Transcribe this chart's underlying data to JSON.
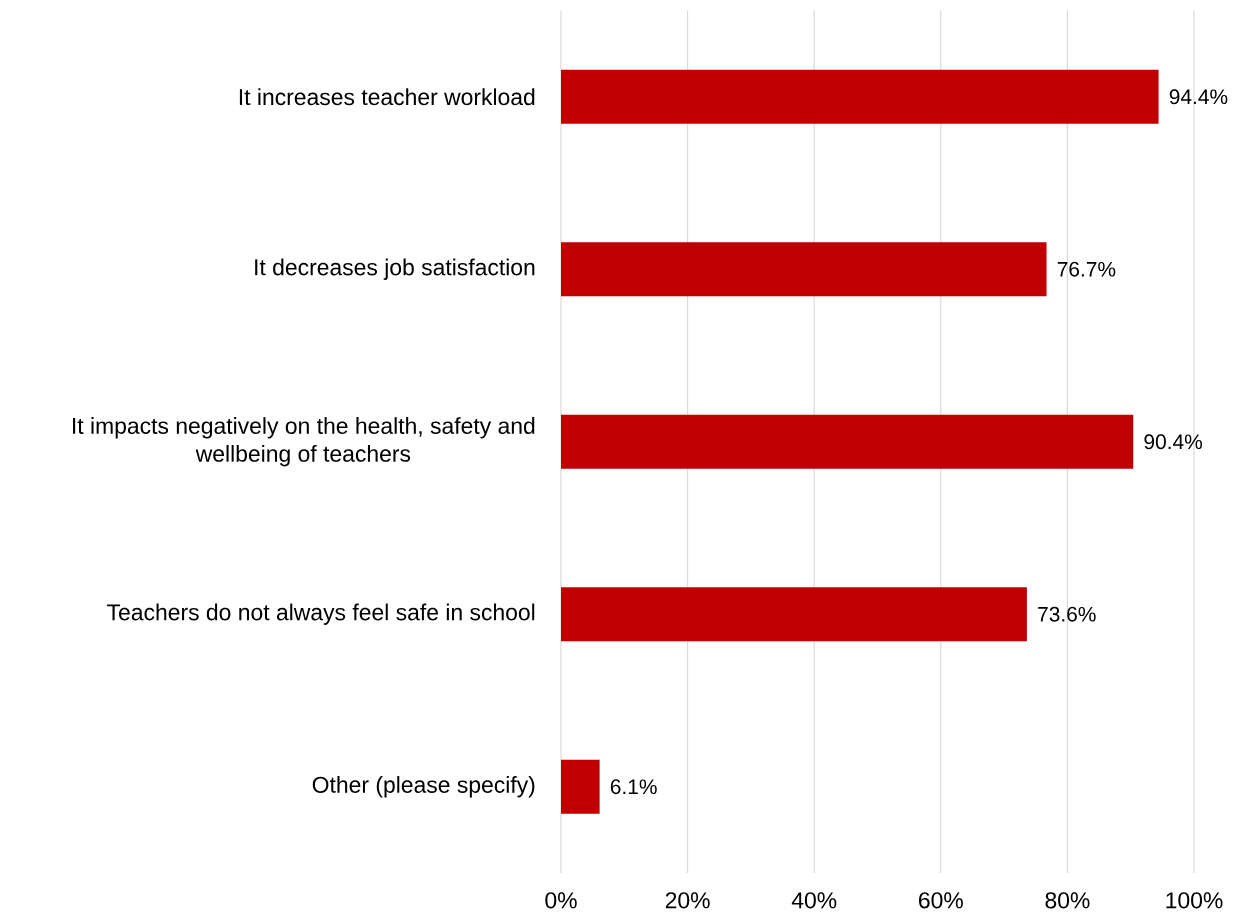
{
  "chart_data": {
    "type": "bar",
    "orientation": "horizontal",
    "categories": [
      "It increases teacher workload",
      "It decreases job satisfaction",
      "It impacts negatively on the health, safety and wellbeing of teachers",
      "Teachers do not always feel safe in school",
      "Other (please specify)"
    ],
    "values": [
      94.4,
      76.7,
      90.4,
      73.6,
      6.1
    ],
    "value_labels": [
      "94.4%",
      "76.7%",
      "90.4%",
      "73.6%",
      "6.1%"
    ],
    "color": "#c00000",
    "xlim": [
      0,
      100
    ],
    "xticks": [
      {
        "value": 0,
        "label": "0%"
      },
      {
        "value": 20,
        "label": "20%"
      },
      {
        "value": 40,
        "label": "40%"
      },
      {
        "value": 60,
        "label": "60%"
      },
      {
        "value": 80,
        "label": "80%"
      },
      {
        "value": 100,
        "label": "100%"
      }
    ],
    "grid": "x"
  }
}
